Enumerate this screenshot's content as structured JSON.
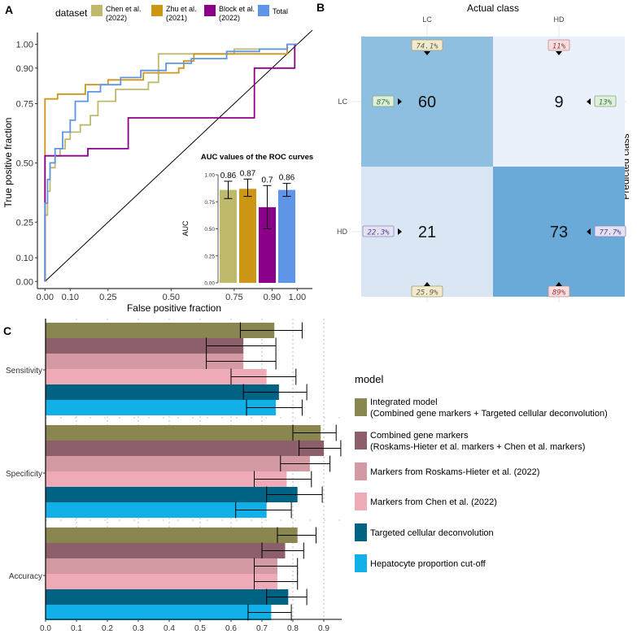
{
  "panel_a": {
    "letter": "A",
    "legend_title": "dataset",
    "legend": [
      {
        "label": "Chen et al.",
        "label2": "(2022)",
        "color": "#bfb96c"
      },
      {
        "label": "Zhu et al.",
        "label2": "(2021)",
        "color": "#cc9617"
      },
      {
        "label": "Block et al.",
        "label2": "(2022)",
        "color": "#8b008b"
      },
      {
        "label": "Total",
        "label2": "",
        "color": "#5f95e6"
      }
    ],
    "inset_title": "AUC values of the ROC curves",
    "inset_ylabel": "AUC"
  },
  "panel_b": {
    "letter": "B",
    "title": "Actual class",
    "ylabel": "Predicted class",
    "cols": [
      "LC",
      "HD"
    ],
    "rows": [
      "LC",
      "HD"
    ],
    "cells": [
      [
        {
          "value": "60",
          "color": "#8fbfe0"
        },
        {
          "value": "9",
          "color": "#eaf1fb"
        }
      ],
      [
        {
          "value": "21",
          "color": "#dbe6f5"
        },
        {
          "value": "73",
          "color": "#6aaad8"
        }
      ]
    ],
    "top_labels": [
      {
        "text": "74.1%",
        "color": "#f1ead3",
        "border": "#a79b64",
        "fg": "#6b6030"
      },
      {
        "text": "11%",
        "color": "#f7dede",
        "border": "#c68989",
        "fg": "#9b3b3b"
      }
    ],
    "bottom_labels": [
      {
        "text": "25.9%",
        "color": "#f1ead3",
        "border": "#a79b64",
        "fg": "#6b6030"
      },
      {
        "text": "89%",
        "color": "#f7dede",
        "border": "#c68989",
        "fg": "#9b3b3b"
      }
    ],
    "left_labels": [
      {
        "text": "87%",
        "color": "#dfeedd",
        "border": "#7fae73",
        "fg": "#3d7a32"
      },
      {
        "text": "22.3%",
        "color": "#e4e2f3",
        "border": "#8d86c2",
        "fg": "#4a4292"
      }
    ],
    "right_labels": [
      {
        "text": "13%",
        "color": "#dfeedd",
        "border": "#7fae73",
        "fg": "#3d7a32"
      },
      {
        "text": "77.7%",
        "color": "#e4e2f3",
        "border": "#8d86c2",
        "fg": "#4a4292"
      }
    ]
  },
  "panel_c": {
    "letter": "C",
    "legend_title": "model"
  },
  "chart_data": [
    {
      "id": "roc",
      "type": "line",
      "title": "",
      "xlabel": "False positive fraction",
      "ylabel": "True positive fraction",
      "xlim": [
        -0.03,
        1.06
      ],
      "ylim": [
        -0.03,
        1.05
      ],
      "xticks": [
        0.0,
        0.1,
        0.25,
        0.5,
        0.75,
        0.9,
        1.0
      ],
      "xtick_labels": [
        "0.00",
        "0.10",
        "0.25",
        "0.50",
        "0.75",
        "0.90",
        "1.00"
      ],
      "yticks": [
        0.0,
        0.1,
        0.25,
        0.5,
        0.75,
        0.9,
        1.0
      ],
      "ytick_labels": [
        "0.00",
        "0.10",
        "0.25",
        "0.50",
        "0.75",
        "0.90",
        "1.00"
      ],
      "series": [
        {
          "name": "Chen et al. (2022)",
          "color": "#bfb96c",
          "points": [
            [
              0,
              0
            ],
            [
              0,
              0.28
            ],
            [
              0.01,
              0.28
            ],
            [
              0.01,
              0.38
            ],
            [
              0.02,
              0.38
            ],
            [
              0.02,
              0.48
            ],
            [
              0.04,
              0.48
            ],
            [
              0.04,
              0.53
            ],
            [
              0.06,
              0.53
            ],
            [
              0.06,
              0.56
            ],
            [
              0.08,
              0.56
            ],
            [
              0.08,
              0.6
            ],
            [
              0.1,
              0.6
            ],
            [
              0.1,
              0.63
            ],
            [
              0.14,
              0.63
            ],
            [
              0.14,
              0.66
            ],
            [
              0.18,
              0.66
            ],
            [
              0.18,
              0.7
            ],
            [
              0.21,
              0.7
            ],
            [
              0.21,
              0.76
            ],
            [
              0.28,
              0.76
            ],
            [
              0.28,
              0.81
            ],
            [
              0.41,
              0.81
            ],
            [
              0.41,
              0.84
            ],
            [
              0.45,
              0.84
            ],
            [
              0.45,
              0.96
            ],
            [
              0.75,
              0.96
            ],
            [
              0.75,
              0.98
            ],
            [
              0.96,
              0.98
            ],
            [
              0.96,
              1.0
            ],
            [
              1.0,
              1.0
            ]
          ]
        },
        {
          "name": "Zhu et al. (2021)",
          "color": "#cc9617",
          "points": [
            [
              0,
              0
            ],
            [
              0,
              0.77
            ],
            [
              0.05,
              0.77
            ],
            [
              0.05,
              0.79
            ],
            [
              0.16,
              0.79
            ],
            [
              0.16,
              0.83
            ],
            [
              0.25,
              0.83
            ],
            [
              0.25,
              0.85
            ],
            [
              0.39,
              0.85
            ],
            [
              0.39,
              0.88
            ],
            [
              0.53,
              0.88
            ],
            [
              0.53,
              0.9
            ],
            [
              0.55,
              0.9
            ],
            [
              0.55,
              0.93
            ],
            [
              0.59,
              0.93
            ],
            [
              0.59,
              0.96
            ],
            [
              0.96,
              0.96
            ],
            [
              0.96,
              1.0
            ],
            [
              1.0,
              1.0
            ]
          ]
        },
        {
          "name": "Block et al. (2022)",
          "color": "#8b008b",
          "points": [
            [
              0,
              0
            ],
            [
              0,
              0.53
            ],
            [
              0.08,
              0.53
            ],
            [
              0.08,
              0.53
            ],
            [
              0.17,
              0.53
            ],
            [
              0.17,
              0.56
            ],
            [
              0.33,
              0.56
            ],
            [
              0.33,
              0.69
            ],
            [
              0.83,
              0.69
            ],
            [
              0.83,
              0.9
            ],
            [
              0.99,
              0.9
            ],
            [
              0.99,
              1.0
            ],
            [
              1.0,
              1.0
            ]
          ]
        },
        {
          "name": "Total",
          "color": "#5f95e6",
          "points": [
            [
              0,
              0
            ],
            [
              0,
              0.33
            ],
            [
              0.01,
              0.33
            ],
            [
              0.01,
              0.43
            ],
            [
              0.02,
              0.43
            ],
            [
              0.02,
              0.5
            ],
            [
              0.04,
              0.5
            ],
            [
              0.04,
              0.56
            ],
            [
              0.07,
              0.56
            ],
            [
              0.07,
              0.63
            ],
            [
              0.1,
              0.63
            ],
            [
              0.1,
              0.68
            ],
            [
              0.12,
              0.68
            ],
            [
              0.12,
              0.76
            ],
            [
              0.17,
              0.76
            ],
            [
              0.17,
              0.8
            ],
            [
              0.22,
              0.8
            ],
            [
              0.22,
              0.83
            ],
            [
              0.3,
              0.83
            ],
            [
              0.3,
              0.86
            ],
            [
              0.38,
              0.86
            ],
            [
              0.38,
              0.89
            ],
            [
              0.48,
              0.89
            ],
            [
              0.48,
              0.92
            ],
            [
              0.58,
              0.92
            ],
            [
              0.58,
              0.94
            ],
            [
              0.72,
              0.94
            ],
            [
              0.72,
              0.97
            ],
            [
              0.85,
              0.97
            ],
            [
              0.85,
              0.98
            ],
            [
              0.96,
              0.98
            ],
            [
              0.96,
              1.0
            ],
            [
              1.0,
              1.0
            ]
          ]
        }
      ]
    },
    {
      "id": "auc_inset",
      "type": "bar",
      "title": "AUC values of the ROC curves",
      "ylabel": "AUC",
      "ylim": [
        0,
        1.0
      ],
      "yticks": [
        0,
        0.25,
        0.5,
        0.75,
        1.0
      ],
      "ytick_labels": [
        "0.00",
        "0.25",
        "0.50",
        "0.75",
        "1.00"
      ],
      "categories": [
        "Chen et al. (2022)",
        "Zhu et al. (2021)",
        "Block et al. (2022)",
        "Total"
      ],
      "values": [
        0.86,
        0.87,
        0.7,
        0.86
      ],
      "value_labels": [
        "0.86",
        "0.87",
        "0.7",
        "0.86"
      ],
      "err_low": [
        0.78,
        0.8,
        0.5,
        0.8
      ],
      "err_high": [
        0.94,
        0.96,
        0.9,
        0.92
      ],
      "colors": [
        "#bfb96c",
        "#cc9617",
        "#8b008b",
        "#5f95e6"
      ]
    },
    {
      "id": "metrics",
      "type": "bar",
      "orientation": "horizontal",
      "xlim": [
        0,
        0.96
      ],
      "xticks": [
        0,
        0.1,
        0.2,
        0.3,
        0.4,
        0.5,
        0.6,
        0.7,
        0.8,
        0.9
      ],
      "xtick_labels": [
        "0.0",
        "0.1",
        "0.2",
        "0.3",
        "0.4",
        "0.5",
        "0.6",
        "0.7",
        "0.8",
        "0.9"
      ],
      "categories": [
        "Sensitivity",
        "Specificity",
        "Accuracy"
      ],
      "series": [
        {
          "name": "Integrated model",
          "name2": "(Combined gene markers + Targeted cellular deconvolution)",
          "color": "#8a8650",
          "values": [
            0.74,
            0.89,
            0.815
          ],
          "low": [
            0.63,
            0.8,
            0.75
          ],
          "high": [
            0.83,
            0.94,
            0.875
          ]
        },
        {
          "name": "Combined gene markers",
          "name2": "(Roskams-Hieter et al. markers + Chen et al. markers)",
          "color": "#8c5f6a",
          "values": [
            0.64,
            0.9,
            0.775
          ],
          "low": [
            0.52,
            0.82,
            0.7
          ],
          "high": [
            0.745,
            0.955,
            0.835
          ]
        },
        {
          "name": "Markers from Roskams-Hieter et al. (2022)",
          "name2": "",
          "color": "#d39aa4",
          "values": [
            0.64,
            0.855,
            0.75
          ],
          "low": [
            0.52,
            0.76,
            0.675
          ],
          "high": [
            0.745,
            0.92,
            0.815
          ]
        },
        {
          "name": "Markers from Chen et al. (2022)",
          "name2": "",
          "color": "#eeaab7",
          "values": [
            0.715,
            0.78,
            0.75
          ],
          "low": [
            0.6,
            0.675,
            0.675
          ],
          "high": [
            0.81,
            0.86,
            0.815
          ]
        },
        {
          "name": "Targeted cellular deconvolution",
          "name2": "",
          "color": "#006384",
          "values": [
            0.755,
            0.815,
            0.785
          ],
          "low": [
            0.64,
            0.715,
            0.715
          ],
          "high": [
            0.845,
            0.895,
            0.845
          ]
        },
        {
          "name": "Hepatocyte proportion cut-off",
          "name2": "",
          "color": "#12b0e8",
          "values": [
            0.745,
            0.715,
            0.73
          ],
          "low": [
            0.65,
            0.615,
            0.655
          ],
          "high": [
            0.83,
            0.795,
            0.795
          ]
        }
      ]
    }
  ]
}
